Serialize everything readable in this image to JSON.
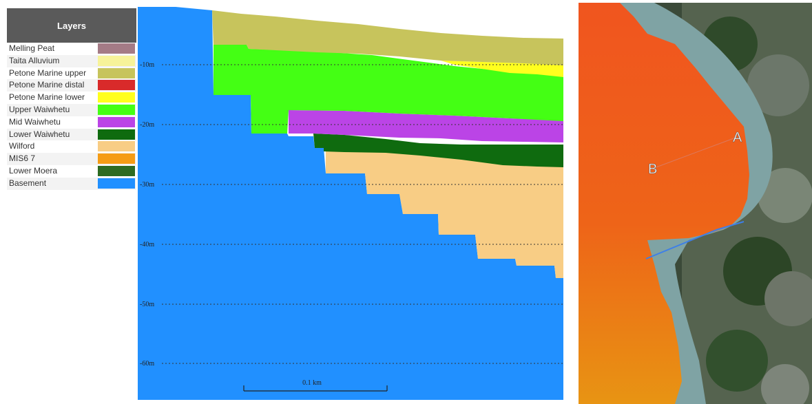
{
  "legend": {
    "title": "Layers",
    "items": [
      {
        "label": "Melling Peat",
        "color": "#a47b86"
      },
      {
        "label": "Taita Alluvium",
        "color": "#f7f39a"
      },
      {
        "label": "Petone Marine upper",
        "color": "#c7c45c"
      },
      {
        "label": "Petone Marine distal",
        "color": "#d92a2a"
      },
      {
        "label": "Petone Marine lower",
        "color": "#ffff1e"
      },
      {
        "label": "Upper Waiwhetu",
        "color": "#44ff14"
      },
      {
        "label": "Mid Waiwhetu",
        "color": "#bb44e6"
      },
      {
        "label": "Lower Waiwhetu",
        "color": "#0f6b0f"
      },
      {
        "label": "Wilford",
        "color": "#f8cd85"
      },
      {
        "label": "MIS6 7",
        "color": "#f59c15"
      },
      {
        "label": "Lower Moera",
        "color": "#2d6b22"
      },
      {
        "label": "Basement",
        "color": "#2190ff"
      }
    ]
  },
  "section": {
    "depth_labels": [
      "-10m",
      "-20m",
      "-30m",
      "-40m",
      "-50m",
      "-60m"
    ],
    "scale_label": "0.1 km"
  },
  "map": {
    "label_a": "A",
    "label_b": "B"
  }
}
